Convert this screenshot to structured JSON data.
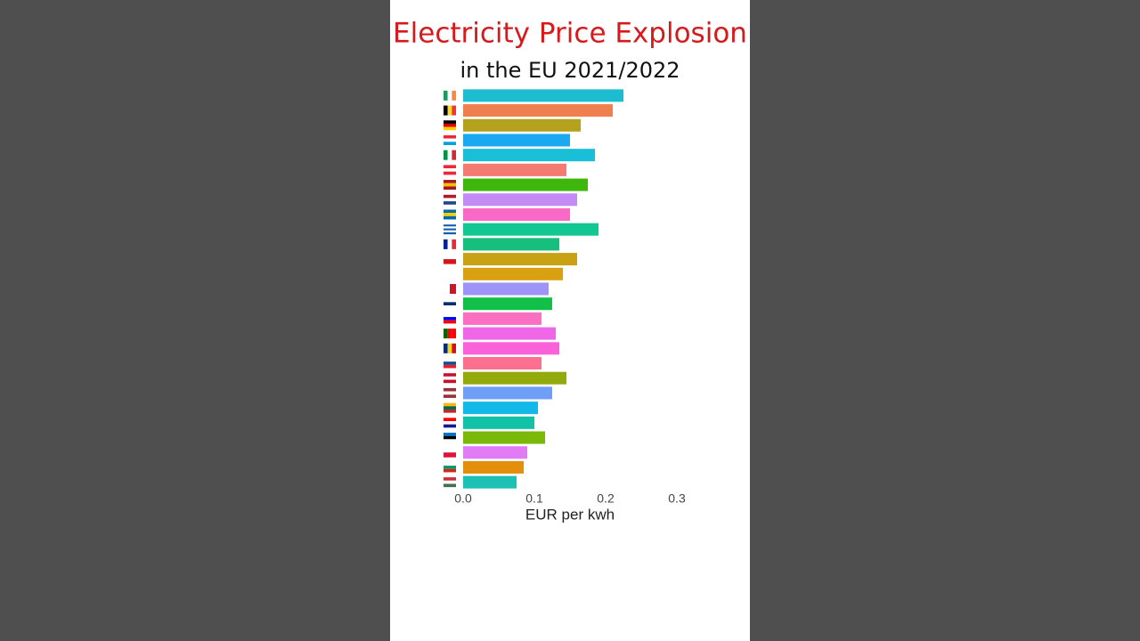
{
  "chart_data": {
    "type": "barh",
    "title": "Electricity Price Explosion",
    "subtitle": "in the EU 2021/2022",
    "xlabel": "EUR per kwh",
    "categories": [
      null,
      null,
      null,
      null,
      null,
      null,
      null,
      null,
      null,
      null,
      null,
      null,
      null,
      null,
      null,
      null,
      null,
      null,
      null,
      null,
      null,
      null,
      null,
      null,
      null,
      null,
      null
    ],
    "values": [
      0.225,
      0.21,
      0.165,
      0.15,
      0.185,
      0.145,
      0.175,
      0.16,
      0.15,
      0.19,
      0.135,
      0.16,
      0.14,
      0.12,
      0.125,
      0.11,
      0.13,
      0.135,
      0.11,
      0.145,
      0.125,
      0.105,
      0.1,
      0.115,
      0.09,
      0.085,
      0.075
    ],
    "colors": [
      "#1cbdd0",
      "#ef7f4f",
      "#b5a21c",
      "#1aa9f0",
      "#18bfd6",
      "#f47b72",
      "#3fb60c",
      "#c58bf5",
      "#fb69c8",
      "#12c792",
      "#16bf7c",
      "#c9a114",
      "#d9a012",
      "#9e94f8",
      "#11bf49",
      "#fb6fc2",
      "#ef67e8",
      "#fa62d8",
      "#fb6f8f",
      "#93aa0c",
      "#6e9ef6",
      "#12b8e8",
      "#11c2a6",
      "#7ab90a",
      "#e17bf6",
      "#e48f0c",
      "#1cc0b5"
    ],
    "xlim": [
      0,
      0.3
    ],
    "xticks": [
      {
        "value": 0,
        "label": "0.0"
      },
      0.1,
      0.2,
      0.3
    ],
    "grid": false
  }
}
